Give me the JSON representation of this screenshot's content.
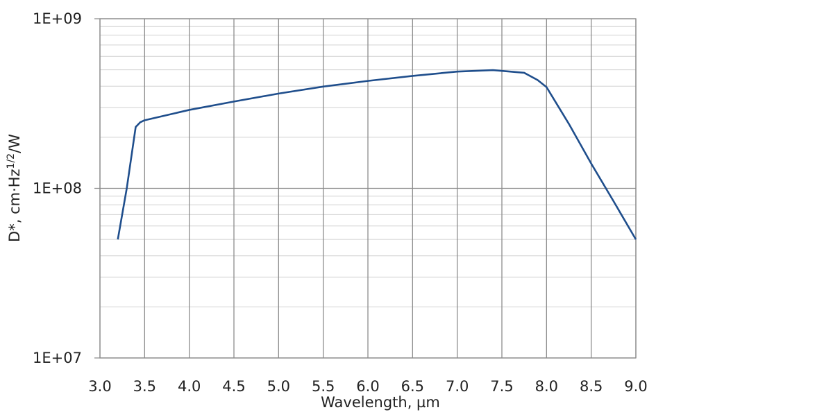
{
  "chart_data": {
    "type": "line",
    "ylabel": {
      "text": "D*, cm·Hz",
      "superscript": "1/2",
      "suffix": "/W"
    },
    "xlabel": "Wavelength, µm",
    "log_y": true,
    "grid": true,
    "xlim": [
      3.0,
      9.0
    ],
    "xticks": [
      {
        "value": 3.0,
        "label": "3.0"
      },
      {
        "value": 3.5,
        "label": "3.5"
      },
      {
        "value": 4.0,
        "label": "4.0"
      },
      {
        "value": 4.5,
        "label": "4.5"
      },
      {
        "value": 5.0,
        "label": "5.0"
      },
      {
        "value": 5.5,
        "label": "5.5"
      },
      {
        "value": 6.0,
        "label": "6.0"
      },
      {
        "value": 6.5,
        "label": "6.5"
      },
      {
        "value": 7.0,
        "label": "7.0"
      },
      {
        "value": 7.5,
        "label": "7.5"
      },
      {
        "value": 8.0,
        "label": "8.0"
      },
      {
        "value": 8.5,
        "label": "8.5"
      },
      {
        "value": 9.0,
        "label": "9.0"
      }
    ],
    "ylim": [
      10000000,
      1000000000
    ],
    "yticks": [
      {
        "value": 10000000,
        "label": "1E+07"
      },
      {
        "value": 100000000,
        "label": "1E+08"
      },
      {
        "value": 1000000000,
        "label": "1E+09"
      }
    ],
    "yminorticks": [
      20000000,
      30000000,
      40000000,
      50000000,
      60000000,
      70000000,
      80000000,
      90000000,
      200000000,
      300000000,
      400000000,
      500000000,
      600000000,
      700000000,
      800000000,
      900000000
    ],
    "x": [
      3.2,
      3.3,
      3.4,
      3.45,
      3.5,
      4.0,
      4.5,
      5.0,
      5.5,
      6.0,
      6.5,
      7.0,
      7.4,
      7.75,
      7.9,
      8.0,
      8.25,
      8.5,
      8.75,
      9.0
    ],
    "series": [
      {
        "color": "#1f4e8c",
        "values": [
          50000000,
          100000000,
          230000000,
          245000000,
          252000000,
          290000000,
          325000000,
          362000000,
          398000000,
          430000000,
          460000000,
          488000000,
          498000000,
          480000000,
          435000000,
          395000000,
          240000000,
          140000000,
          84000000,
          50000000
        ]
      }
    ]
  }
}
